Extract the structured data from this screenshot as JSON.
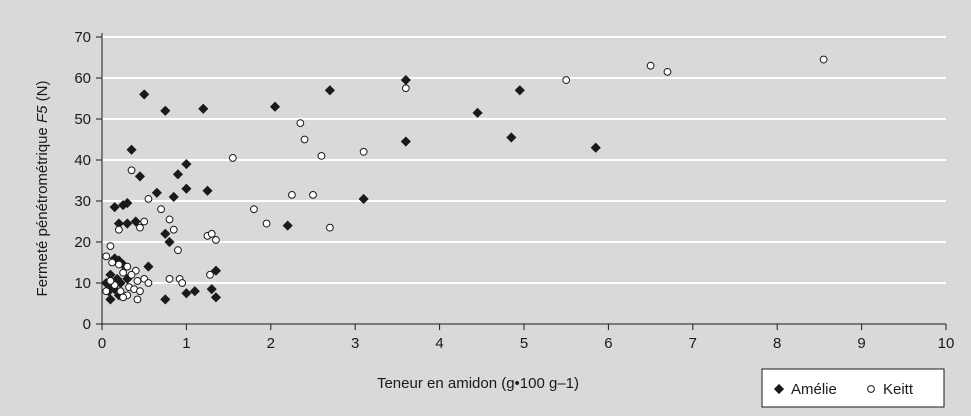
{
  "chart_data": {
    "type": "scatter",
    "xlabel": "Teneur en amidon (g•100 g–1)",
    "ylabel_prefix": "Fermeté pénétrométrique ",
    "ylabel_var": "F5",
    "ylabel_suffix": " (N)",
    "xlim": [
      0,
      10
    ],
    "ylim": [
      0,
      70
    ],
    "xticks": [
      0,
      1,
      2,
      3,
      4,
      5,
      6,
      7,
      8,
      9,
      10
    ],
    "yticks": [
      0,
      10,
      20,
      30,
      40,
      50,
      60,
      70
    ],
    "grid": "horizontal",
    "legend_position": "bottom-right",
    "background": "#d9d9d9",
    "series": [
      {
        "name": "Amélie",
        "marker": "diamond",
        "color": "#1a1a1a",
        "points": [
          [
            0.5,
            56
          ],
          [
            0.75,
            52
          ],
          [
            1.2,
            52.5
          ],
          [
            2.05,
            53
          ],
          [
            2.7,
            57
          ],
          [
            3.6,
            59.5
          ],
          [
            3.6,
            44.5
          ],
          [
            4.45,
            51.5
          ],
          [
            4.95,
            57
          ],
          [
            4.85,
            45.5
          ],
          [
            5.85,
            43
          ],
          [
            3.1,
            30.5
          ],
          [
            2.2,
            24
          ],
          [
            0.35,
            42.5
          ],
          [
            1.0,
            39
          ],
          [
            0.9,
            36.5
          ],
          [
            0.45,
            36
          ],
          [
            0.65,
            32
          ],
          [
            1.0,
            33
          ],
          [
            0.85,
            31
          ],
          [
            1.25,
            32.5
          ],
          [
            0.15,
            28.5
          ],
          [
            0.25,
            29
          ],
          [
            0.3,
            29.5
          ],
          [
            0.2,
            24.5
          ],
          [
            0.3,
            24.5
          ],
          [
            0.4,
            25
          ],
          [
            0.75,
            22
          ],
          [
            0.8,
            20
          ],
          [
            0.55,
            14
          ],
          [
            1.35,
            13
          ],
          [
            0.15,
            16
          ],
          [
            0.2,
            15.5
          ],
          [
            0.25,
            14.5
          ],
          [
            0.1,
            12
          ],
          [
            0.05,
            10
          ],
          [
            0.12,
            9
          ],
          [
            0.18,
            11
          ],
          [
            0.22,
            10
          ],
          [
            0.08,
            8
          ],
          [
            0.15,
            8.5
          ],
          [
            0.3,
            11
          ],
          [
            0.1,
            6
          ],
          [
            0.2,
            7
          ],
          [
            0.75,
            6
          ],
          [
            1.0,
            7.5
          ],
          [
            1.1,
            8
          ],
          [
            1.3,
            8.5
          ],
          [
            1.35,
            6.5
          ]
        ]
      },
      {
        "name": "Keitt",
        "marker": "circle",
        "color": "#ffffff",
        "points": [
          [
            8.55,
            64.5
          ],
          [
            6.5,
            63
          ],
          [
            6.7,
            61.5
          ],
          [
            5.5,
            59.5
          ],
          [
            3.6,
            57.5
          ],
          [
            2.35,
            49
          ],
          [
            2.4,
            45
          ],
          [
            2.6,
            41
          ],
          [
            3.1,
            42
          ],
          [
            1.55,
            40.5
          ],
          [
            2.25,
            31.5
          ],
          [
            2.5,
            31.5
          ],
          [
            1.8,
            28
          ],
          [
            1.95,
            24.5
          ],
          [
            2.7,
            23.5
          ],
          [
            0.35,
            37.5
          ],
          [
            0.55,
            30.5
          ],
          [
            0.7,
            28
          ],
          [
            0.8,
            25.5
          ],
          [
            0.5,
            25
          ],
          [
            0.45,
            23.5
          ],
          [
            0.85,
            23
          ],
          [
            0.2,
            23
          ],
          [
            1.25,
            21.5
          ],
          [
            1.3,
            22
          ],
          [
            1.35,
            20.5
          ],
          [
            0.9,
            18
          ],
          [
            0.1,
            19
          ],
          [
            0.05,
            16.5
          ],
          [
            0.12,
            15
          ],
          [
            0.2,
            14.5
          ],
          [
            0.3,
            14
          ],
          [
            0.4,
            13
          ],
          [
            0.25,
            12.5
          ],
          [
            0.35,
            12
          ],
          [
            0.42,
            10.5
          ],
          [
            0.5,
            11
          ],
          [
            0.8,
            11
          ],
          [
            0.92,
            11
          ],
          [
            0.95,
            10
          ],
          [
            1.28,
            12
          ],
          [
            0.55,
            10
          ],
          [
            0.32,
            9
          ],
          [
            0.38,
            8.5
          ],
          [
            0.22,
            8
          ],
          [
            0.15,
            9.5
          ],
          [
            0.3,
            7
          ],
          [
            0.25,
            6.5
          ],
          [
            0.42,
            6
          ],
          [
            0.45,
            8
          ],
          [
            0.05,
            8
          ],
          [
            0.1,
            10.5
          ]
        ]
      }
    ]
  }
}
